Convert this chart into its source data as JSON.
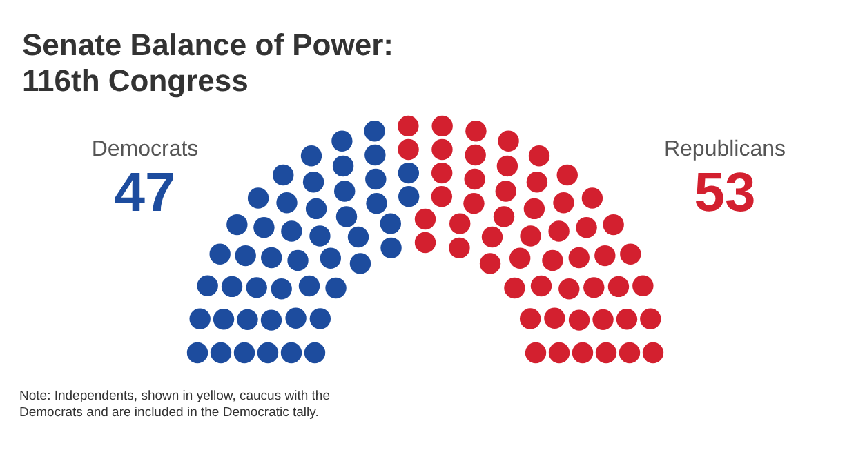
{
  "chart_data": {
    "type": "other",
    "title": "Senate Balance of Power: 116th Congress",
    "categories": [
      "Democrats",
      "Republicans"
    ],
    "values": [
      47,
      53
    ],
    "colors": [
      "#1d4c9e",
      "#d3202f"
    ],
    "data_labels": true,
    "annotations": [
      "Note: Independents, shown in yellow, caucus with the Democrats and are included in the Democratic tally."
    ]
  }
}
